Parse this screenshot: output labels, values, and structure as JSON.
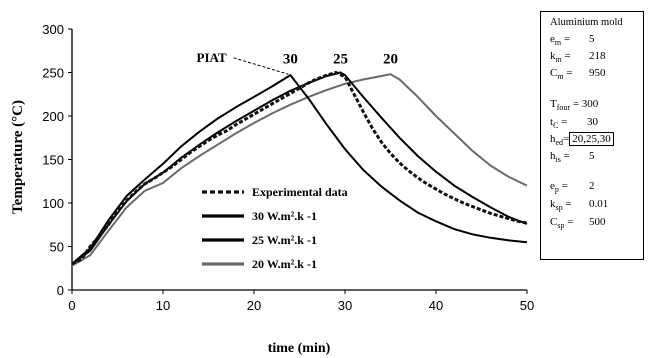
{
  "chart_data": {
    "type": "line",
    "xlabel": "time (min)",
    "ylabel": "Temperature (°C)",
    "xlim": [
      0,
      50
    ],
    "ylim": [
      0,
      300
    ],
    "x_ticks": [
      "0",
      "10",
      "20",
      "30",
      "40",
      "50"
    ],
    "y_ticks": [
      "0",
      "50",
      "100",
      "150",
      "200",
      "250",
      "300"
    ],
    "grid": false,
    "legend_position": "lower-center",
    "series": [
      {
        "name": "Experimental data",
        "color": "#111111",
        "style": "dashed",
        "x": [
          0,
          1,
          2,
          3,
          4,
          5,
          6,
          7,
          8,
          9,
          10,
          11,
          12,
          13,
          14,
          15,
          16,
          17,
          18,
          19,
          20,
          21,
          22,
          23,
          24,
          25,
          26,
          27,
          28,
          29,
          30,
          31,
          32,
          33,
          34,
          35,
          36,
          37,
          38,
          39,
          40,
          41,
          42,
          43,
          44,
          45,
          46,
          47,
          48,
          49,
          50
        ],
        "y": [
          30,
          35,
          50,
          62,
          75,
          90,
          103,
          113,
          122,
          128,
          135,
          142,
          150,
          158,
          165,
          172,
          178,
          183,
          190,
          196,
          202,
          208,
          214,
          220,
          226,
          232,
          238,
          243,
          247,
          250,
          245,
          225,
          205,
          186,
          170,
          157,
          146,
          137,
          129,
          122,
          116,
          110,
          105,
          100,
          96,
          92,
          88,
          85,
          82,
          79,
          77
        ]
      },
      {
        "name": "30 W.m².k -1",
        "color": "#000000",
        "style": "solid",
        "x": [
          0,
          2,
          4,
          6,
          8,
          10,
          12,
          14,
          16,
          18,
          20,
          22,
          24,
          26,
          28,
          30,
          32,
          34,
          36,
          38,
          40,
          42,
          44,
          46,
          48,
          50
        ],
        "y": [
          30,
          48,
          80,
          108,
          127,
          145,
          165,
          182,
          197,
          210,
          222,
          234,
          247,
          220,
          190,
          162,
          138,
          119,
          103,
          89,
          79,
          70,
          64,
          60,
          57,
          55
        ]
      },
      {
        "name": "25 W.m².k -1",
        "color": "#000000",
        "style": "solid",
        "x": [
          0,
          2,
          4,
          6,
          8,
          10,
          12,
          14,
          16,
          18,
          20,
          22,
          24,
          26,
          28,
          29.5,
          30,
          32,
          34,
          36,
          38,
          40,
          42,
          44,
          46,
          48,
          50
        ],
        "y": [
          30,
          45,
          75,
          102,
          122,
          135,
          152,
          167,
          181,
          194,
          206,
          218,
          229,
          238,
          246,
          250,
          247,
          222,
          198,
          175,
          154,
          136,
          120,
          107,
          95,
          84,
          76
        ]
      },
      {
        "name": "20 W.m².k -1",
        "color": "#6a6a6a",
        "style": "solid",
        "x": [
          0,
          2,
          4,
          6,
          8,
          10,
          12,
          14,
          16,
          18,
          20,
          22,
          24,
          26,
          28,
          30,
          32,
          34,
          35,
          36,
          38,
          40,
          42,
          44,
          46,
          48,
          50
        ],
        "y": [
          28,
          40,
          68,
          95,
          114,
          123,
          140,
          154,
          167,
          180,
          192,
          203,
          213,
          222,
          230,
          237,
          242,
          246,
          248,
          242,
          222,
          200,
          180,
          160,
          143,
          130,
          120
        ]
      }
    ],
    "annotations": [
      {
        "text": "PIAT",
        "x": 16,
        "y": 260
      },
      {
        "text": "30",
        "x": 24,
        "y": 257
      },
      {
        "text": "25",
        "x": 29.5,
        "y": 257
      },
      {
        "text": "20",
        "x": 35,
        "y": 257
      }
    ]
  },
  "param_box": {
    "title": "Aluminium mold",
    "em_label": "e",
    "em_sub": "m",
    "em_value": "5",
    "km_label": "k",
    "km_sub": "m",
    "km_value": "218",
    "cm_label": "C",
    "cm_sub": "m",
    "cm_value": "950",
    "tfour_label": "T",
    "tfour_sub": "four",
    "tfour_value": "300",
    "tc_label": "t",
    "tc_sub": "C",
    "tc_value": "30",
    "hed_label": "h",
    "hed_sub": "ed",
    "hed_value": "20,25,30",
    "his_label": "h",
    "his_sub": "is",
    "his_value": "5",
    "ep_label": "e",
    "ep_sub": "p",
    "ep_value": "2",
    "ksp_label": "k",
    "ksp_sub": "sp",
    "ksp_value": "0.01",
    "csp_label": "C",
    "csp_sub": "sp",
    "csp_value": "500"
  }
}
